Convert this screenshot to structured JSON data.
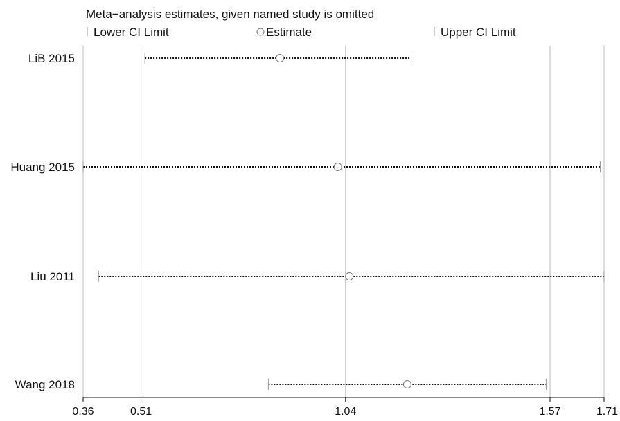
{
  "chart_data": {
    "type": "forest",
    "title": "Meta−analysis estimates, given named study is omitted",
    "legend": {
      "lower": "Lower CI Limit",
      "estimate": "Estimate",
      "upper": "Upper CI Limit",
      "placement": "top"
    },
    "x_ticks": [
      {
        "value": 0.36,
        "label": "0.36"
      },
      {
        "value": 0.51,
        "label": "0.51"
      },
      {
        "value": 1.04,
        "label": "1.04"
      },
      {
        "value": 1.57,
        "label": "1.57"
      },
      {
        "value": 1.71,
        "label": "1.71"
      }
    ],
    "xlim": [
      0.36,
      1.71
    ],
    "gridlines": [
      0.51,
      1.04,
      1.57
    ],
    "studies": [
      {
        "name": "LiB 2015",
        "lower": 0.52,
        "estimate": 0.87,
        "upper": 1.21
      },
      {
        "name": "Huang 2015",
        "lower": 0.36,
        "estimate": 1.02,
        "upper": 1.7
      },
      {
        "name": "Liu 2011",
        "lower": 0.4,
        "estimate": 1.05,
        "upper": 1.71
      },
      {
        "name": "Wang 2018",
        "lower": 0.84,
        "estimate": 1.2,
        "upper": 1.56
      }
    ]
  }
}
